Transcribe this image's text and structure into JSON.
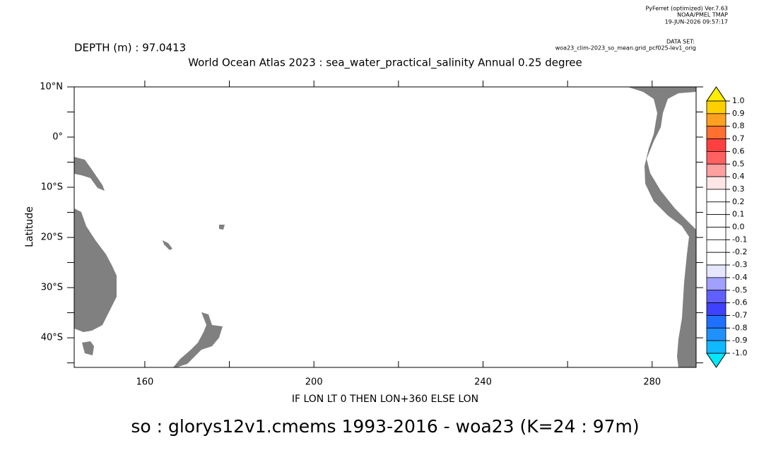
{
  "chart_data": {
    "type": "map",
    "software": [
      "PyFerret (optimized) Ver.7.63",
      "NOAA/PMEL TMAP",
      "19-JUN-2026 09:57:17"
    ],
    "dataset_label": "DATA SET:",
    "dataset": "woa23_clim-2023_so_mean.grid_pcf025-lev1_orig",
    "depth_label": "DEPTH (m) : 97.0413",
    "title": "World Ocean Atlas 2023 : sea_water_practical_salinity Annual  0.25 degree",
    "xlabel": "IF LON LT 0 THEN LON+360 ELSE LON",
    "ylabel": "Latitude",
    "caption": "so : glorys12v1.cmems 1993-2016    - woa23  (K=24 : 97m)",
    "xlim": [
      143.3,
      290.4
    ],
    "ylim": [
      -45.9,
      10
    ],
    "xticks": [
      160,
      200,
      240,
      280
    ],
    "xticks_minor": [
      180,
      220,
      260
    ],
    "yticks": [
      {
        "value": 10,
        "label": "10°N"
      },
      {
        "value": 0,
        "label": "0°"
      },
      {
        "value": -10,
        "label": "10°S"
      },
      {
        "value": -20,
        "label": "20°S"
      },
      {
        "value": -30,
        "label": "30°S"
      },
      {
        "value": -40,
        "label": "40°S"
      }
    ],
    "yticks_minor": [
      5,
      -5,
      -15,
      -25,
      -35,
      -45
    ],
    "colorbar": {
      "levels": [
        {
          "value": 1,
          "label": "1.0"
        },
        0.9,
        0.8,
        0.7,
        0.6,
        0.5,
        0.4,
        0.3,
        0.2,
        0.1,
        {
          "value": 0,
          "label": "0.0"
        },
        -0.1,
        -0.2,
        -0.3,
        -0.4,
        -0.5,
        -0.6,
        -0.7,
        -0.8,
        -0.9,
        {
          "value": -1,
          "label": "-1.0"
        }
      ],
      "colors": [
        "#ffd000",
        "#ffa020",
        "#ff7030",
        "#ff4040",
        "#ff6060",
        "#ffa0a0",
        "#ffe6e6",
        "#ffffff",
        "#ffffff",
        "#ffffff",
        "#ffffff",
        "#ffffff",
        "#ffffff",
        "#e6e6ff",
        "#a0a0ff",
        "#6060ff",
        "#4040ff",
        "#2070ff",
        "#2090ff",
        "#10b8ff"
      ],
      "over_color": "#ffee00",
      "under_color": "#00e8ff"
    },
    "land_color": "#808080"
  }
}
